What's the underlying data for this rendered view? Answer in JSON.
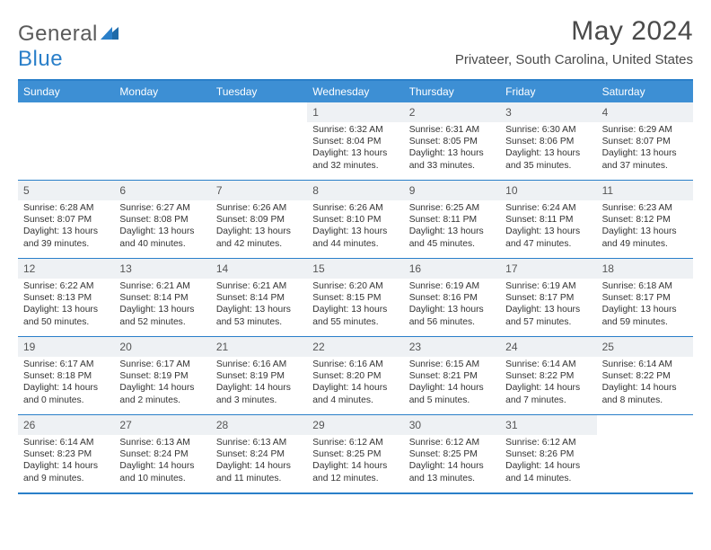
{
  "brand": {
    "name_a": "General",
    "name_b": "Blue"
  },
  "title": "May 2024",
  "location": "Privateer, South Carolina, United States",
  "colors": {
    "header_bg": "#3d8fd4",
    "rule": "#2a7fc9",
    "daynum_bg": "#eef1f4",
    "text": "#333333",
    "title_text": "#4a4a4a",
    "logo_gray": "#5a5a5a",
    "logo_blue": "#2a7fc9"
  },
  "weekdays": [
    "Sunday",
    "Monday",
    "Tuesday",
    "Wednesday",
    "Thursday",
    "Friday",
    "Saturday"
  ],
  "labels": {
    "sunrise": "Sunrise:",
    "sunset": "Sunset:",
    "daylight": "Daylight:"
  },
  "weeks": [
    [
      null,
      null,
      null,
      {
        "n": "1",
        "sr": "6:32 AM",
        "ss": "8:04 PM",
        "dl": "13 hours and 32 minutes."
      },
      {
        "n": "2",
        "sr": "6:31 AM",
        "ss": "8:05 PM",
        "dl": "13 hours and 33 minutes."
      },
      {
        "n": "3",
        "sr": "6:30 AM",
        "ss": "8:06 PM",
        "dl": "13 hours and 35 minutes."
      },
      {
        "n": "4",
        "sr": "6:29 AM",
        "ss": "8:07 PM",
        "dl": "13 hours and 37 minutes."
      }
    ],
    [
      {
        "n": "5",
        "sr": "6:28 AM",
        "ss": "8:07 PM",
        "dl": "13 hours and 39 minutes."
      },
      {
        "n": "6",
        "sr": "6:27 AM",
        "ss": "8:08 PM",
        "dl": "13 hours and 40 minutes."
      },
      {
        "n": "7",
        "sr": "6:26 AM",
        "ss": "8:09 PM",
        "dl": "13 hours and 42 minutes."
      },
      {
        "n": "8",
        "sr": "6:26 AM",
        "ss": "8:10 PM",
        "dl": "13 hours and 44 minutes."
      },
      {
        "n": "9",
        "sr": "6:25 AM",
        "ss": "8:11 PM",
        "dl": "13 hours and 45 minutes."
      },
      {
        "n": "10",
        "sr": "6:24 AM",
        "ss": "8:11 PM",
        "dl": "13 hours and 47 minutes."
      },
      {
        "n": "11",
        "sr": "6:23 AM",
        "ss": "8:12 PM",
        "dl": "13 hours and 49 minutes."
      }
    ],
    [
      {
        "n": "12",
        "sr": "6:22 AM",
        "ss": "8:13 PM",
        "dl": "13 hours and 50 minutes."
      },
      {
        "n": "13",
        "sr": "6:21 AM",
        "ss": "8:14 PM",
        "dl": "13 hours and 52 minutes."
      },
      {
        "n": "14",
        "sr": "6:21 AM",
        "ss": "8:14 PM",
        "dl": "13 hours and 53 minutes."
      },
      {
        "n": "15",
        "sr": "6:20 AM",
        "ss": "8:15 PM",
        "dl": "13 hours and 55 minutes."
      },
      {
        "n": "16",
        "sr": "6:19 AM",
        "ss": "8:16 PM",
        "dl": "13 hours and 56 minutes."
      },
      {
        "n": "17",
        "sr": "6:19 AM",
        "ss": "8:17 PM",
        "dl": "13 hours and 57 minutes."
      },
      {
        "n": "18",
        "sr": "6:18 AM",
        "ss": "8:17 PM",
        "dl": "13 hours and 59 minutes."
      }
    ],
    [
      {
        "n": "19",
        "sr": "6:17 AM",
        "ss": "8:18 PM",
        "dl": "14 hours and 0 minutes."
      },
      {
        "n": "20",
        "sr": "6:17 AM",
        "ss": "8:19 PM",
        "dl": "14 hours and 2 minutes."
      },
      {
        "n": "21",
        "sr": "6:16 AM",
        "ss": "8:19 PM",
        "dl": "14 hours and 3 minutes."
      },
      {
        "n": "22",
        "sr": "6:16 AM",
        "ss": "8:20 PM",
        "dl": "14 hours and 4 minutes."
      },
      {
        "n": "23",
        "sr": "6:15 AM",
        "ss": "8:21 PM",
        "dl": "14 hours and 5 minutes."
      },
      {
        "n": "24",
        "sr": "6:14 AM",
        "ss": "8:22 PM",
        "dl": "14 hours and 7 minutes."
      },
      {
        "n": "25",
        "sr": "6:14 AM",
        "ss": "8:22 PM",
        "dl": "14 hours and 8 minutes."
      }
    ],
    [
      {
        "n": "26",
        "sr": "6:14 AM",
        "ss": "8:23 PM",
        "dl": "14 hours and 9 minutes."
      },
      {
        "n": "27",
        "sr": "6:13 AM",
        "ss": "8:24 PM",
        "dl": "14 hours and 10 minutes."
      },
      {
        "n": "28",
        "sr": "6:13 AM",
        "ss": "8:24 PM",
        "dl": "14 hours and 11 minutes."
      },
      {
        "n": "29",
        "sr": "6:12 AM",
        "ss": "8:25 PM",
        "dl": "14 hours and 12 minutes."
      },
      {
        "n": "30",
        "sr": "6:12 AM",
        "ss": "8:25 PM",
        "dl": "14 hours and 13 minutes."
      },
      {
        "n": "31",
        "sr": "6:12 AM",
        "ss": "8:26 PM",
        "dl": "14 hours and 14 minutes."
      },
      null
    ]
  ]
}
